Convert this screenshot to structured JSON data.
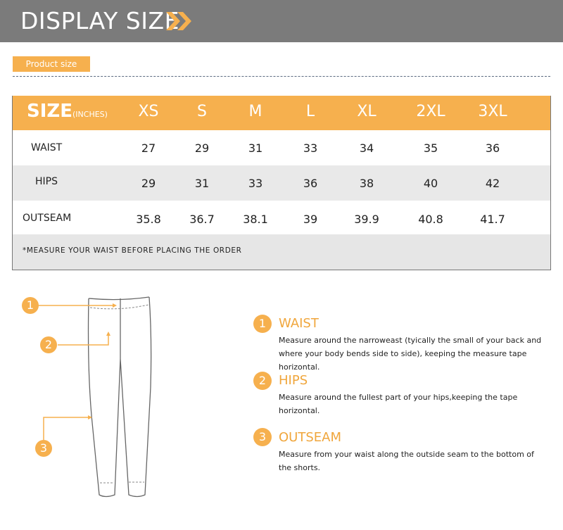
{
  "banner": {
    "title": "DISPLAY SIZE",
    "icon": "double-chevron-right-icon"
  },
  "tag": "Product size",
  "table": {
    "size_label": "SIZE",
    "unit_label": "(INCHES)",
    "sizes": [
      "XS",
      "S",
      "M",
      "L",
      "XL",
      "2XL",
      "3XL"
    ],
    "rows": [
      {
        "label": "WAIST",
        "values": [
          "27",
          "29",
          "31",
          "33",
          "34",
          "35",
          "36"
        ]
      },
      {
        "label": "HIPS",
        "values": [
          "29",
          "31",
          "33",
          "36",
          "38",
          "40",
          "42"
        ]
      },
      {
        "label": "OUTSEAM",
        "values": [
          "35.8",
          "36.7",
          "38.1",
          "39",
          "39.9",
          "40.8",
          "41.7"
        ]
      }
    ],
    "note": "*MEASURE YOUR WAIST BEFORE PLACING THE ORDER"
  },
  "diagram": {
    "markers": [
      "1",
      "2",
      "3"
    ]
  },
  "guide": [
    {
      "num": "1",
      "title": "WAIST",
      "desc": "Measure around the narroweast (tyically the small of your back and where your body bends side to side), keeping the measure tape horizontal."
    },
    {
      "num": "2",
      "title": "HIPS",
      "desc": "Measure around the fullest part of your hips,keeping the tape horizontal."
    },
    {
      "num": "3",
      "title": "OUTSEAM",
      "desc": "Measure from your waist along the outside seam to the bottom of the shorts."
    }
  ],
  "colors": {
    "accent": "#f6b04e",
    "banner": "#7b7b7b",
    "row_alt": "#e9e9e9"
  }
}
